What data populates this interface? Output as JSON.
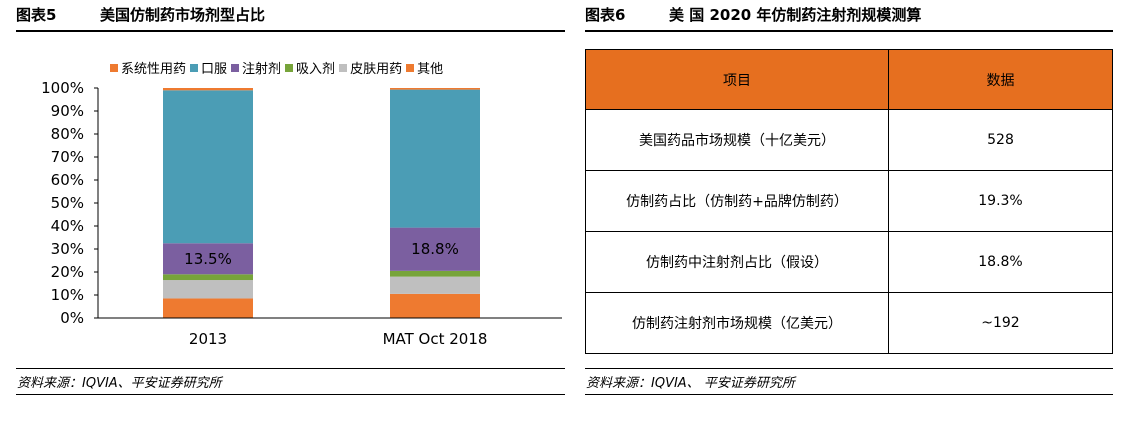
{
  "left_panel": {
    "fig_label": "图表5",
    "title": "美国仿制药市场剂型占比",
    "source": "资料来源：IQVIA、平安证券研究所"
  },
  "right_panel": {
    "fig_label": "图表6",
    "title": "美 国 2020 年仿制药注射剂规模测算",
    "source": "资料来源：IQVIA、 平安证券研究所"
  },
  "chart_data": {
    "type": "bar",
    "stacked": true,
    "categories": [
      "2013",
      "MAT Oct 2018"
    ],
    "ylim": [
      0,
      100
    ],
    "yticks": [
      "0%",
      "10%",
      "20%",
      "30%",
      "40%",
      "50%",
      "60%",
      "70%",
      "80%",
      "90%",
      "100%"
    ],
    "legend_position": "top",
    "series": [
      {
        "name": "其他",
        "color": "#ee7a30",
        "values": [
          8.5,
          10.5
        ]
      },
      {
        "name": "皮肤用药",
        "color": "#bfbfbf",
        "values": [
          8,
          7.5
        ]
      },
      {
        "name": "吸入剂",
        "color": "#77a43a",
        "values": [
          2.5,
          2.5
        ]
      },
      {
        "name": "注射剂",
        "color": "#7b5fa0",
        "values": [
          13.5,
          18.8
        ]
      },
      {
        "name": "口服",
        "color": "#4b9db5",
        "values": [
          66.5,
          60.0
        ]
      },
      {
        "name": "系统性用药",
        "color": "#ee7a30",
        "values": [
          1,
          0.7
        ]
      }
    ],
    "legend_order": [
      "系统性用药",
      "口服",
      "注射剂",
      "吸入剂",
      "皮肤用药",
      "其他"
    ],
    "data_labels": [
      {
        "category": "2013",
        "series": "注射剂",
        "text": "13.5%"
      },
      {
        "category": "MAT Oct 2018",
        "series": "注射剂",
        "text": "18.8%"
      }
    ]
  },
  "table": {
    "headers": [
      "项目",
      "数据"
    ],
    "rows": [
      [
        "美国药品市场规模（十亿美元）",
        "528"
      ],
      [
        "仿制药占比（仿制药+品牌仿制药）",
        "19.3%"
      ],
      [
        "仿制药中注射剂占比（假设）",
        "18.8%"
      ],
      [
        "仿制药注射剂市场规模（亿美元）",
        "~192"
      ]
    ],
    "header_color": "#e66f1f"
  }
}
